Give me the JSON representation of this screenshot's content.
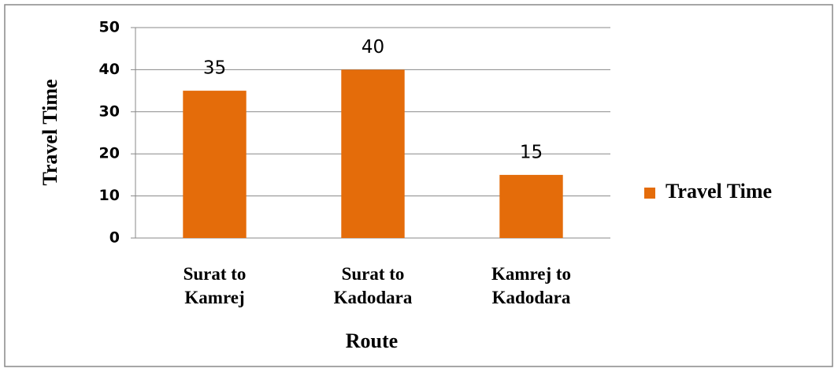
{
  "chart_data": {
    "type": "bar",
    "categories": [
      "Surat to Kamrej",
      "Surat to Kadodara",
      "Kamrej to Kadodara"
    ],
    "series": [
      {
        "name": "Travel Time",
        "color": "#e46c0a",
        "values": [
          35,
          40,
          15
        ]
      }
    ],
    "x_label": "Route",
    "y_label": "Travel Time",
    "ylim": [
      0,
      50
    ],
    "yticks": [
      0,
      10,
      20,
      30,
      40,
      50
    ],
    "grid": true,
    "legend": "right"
  }
}
